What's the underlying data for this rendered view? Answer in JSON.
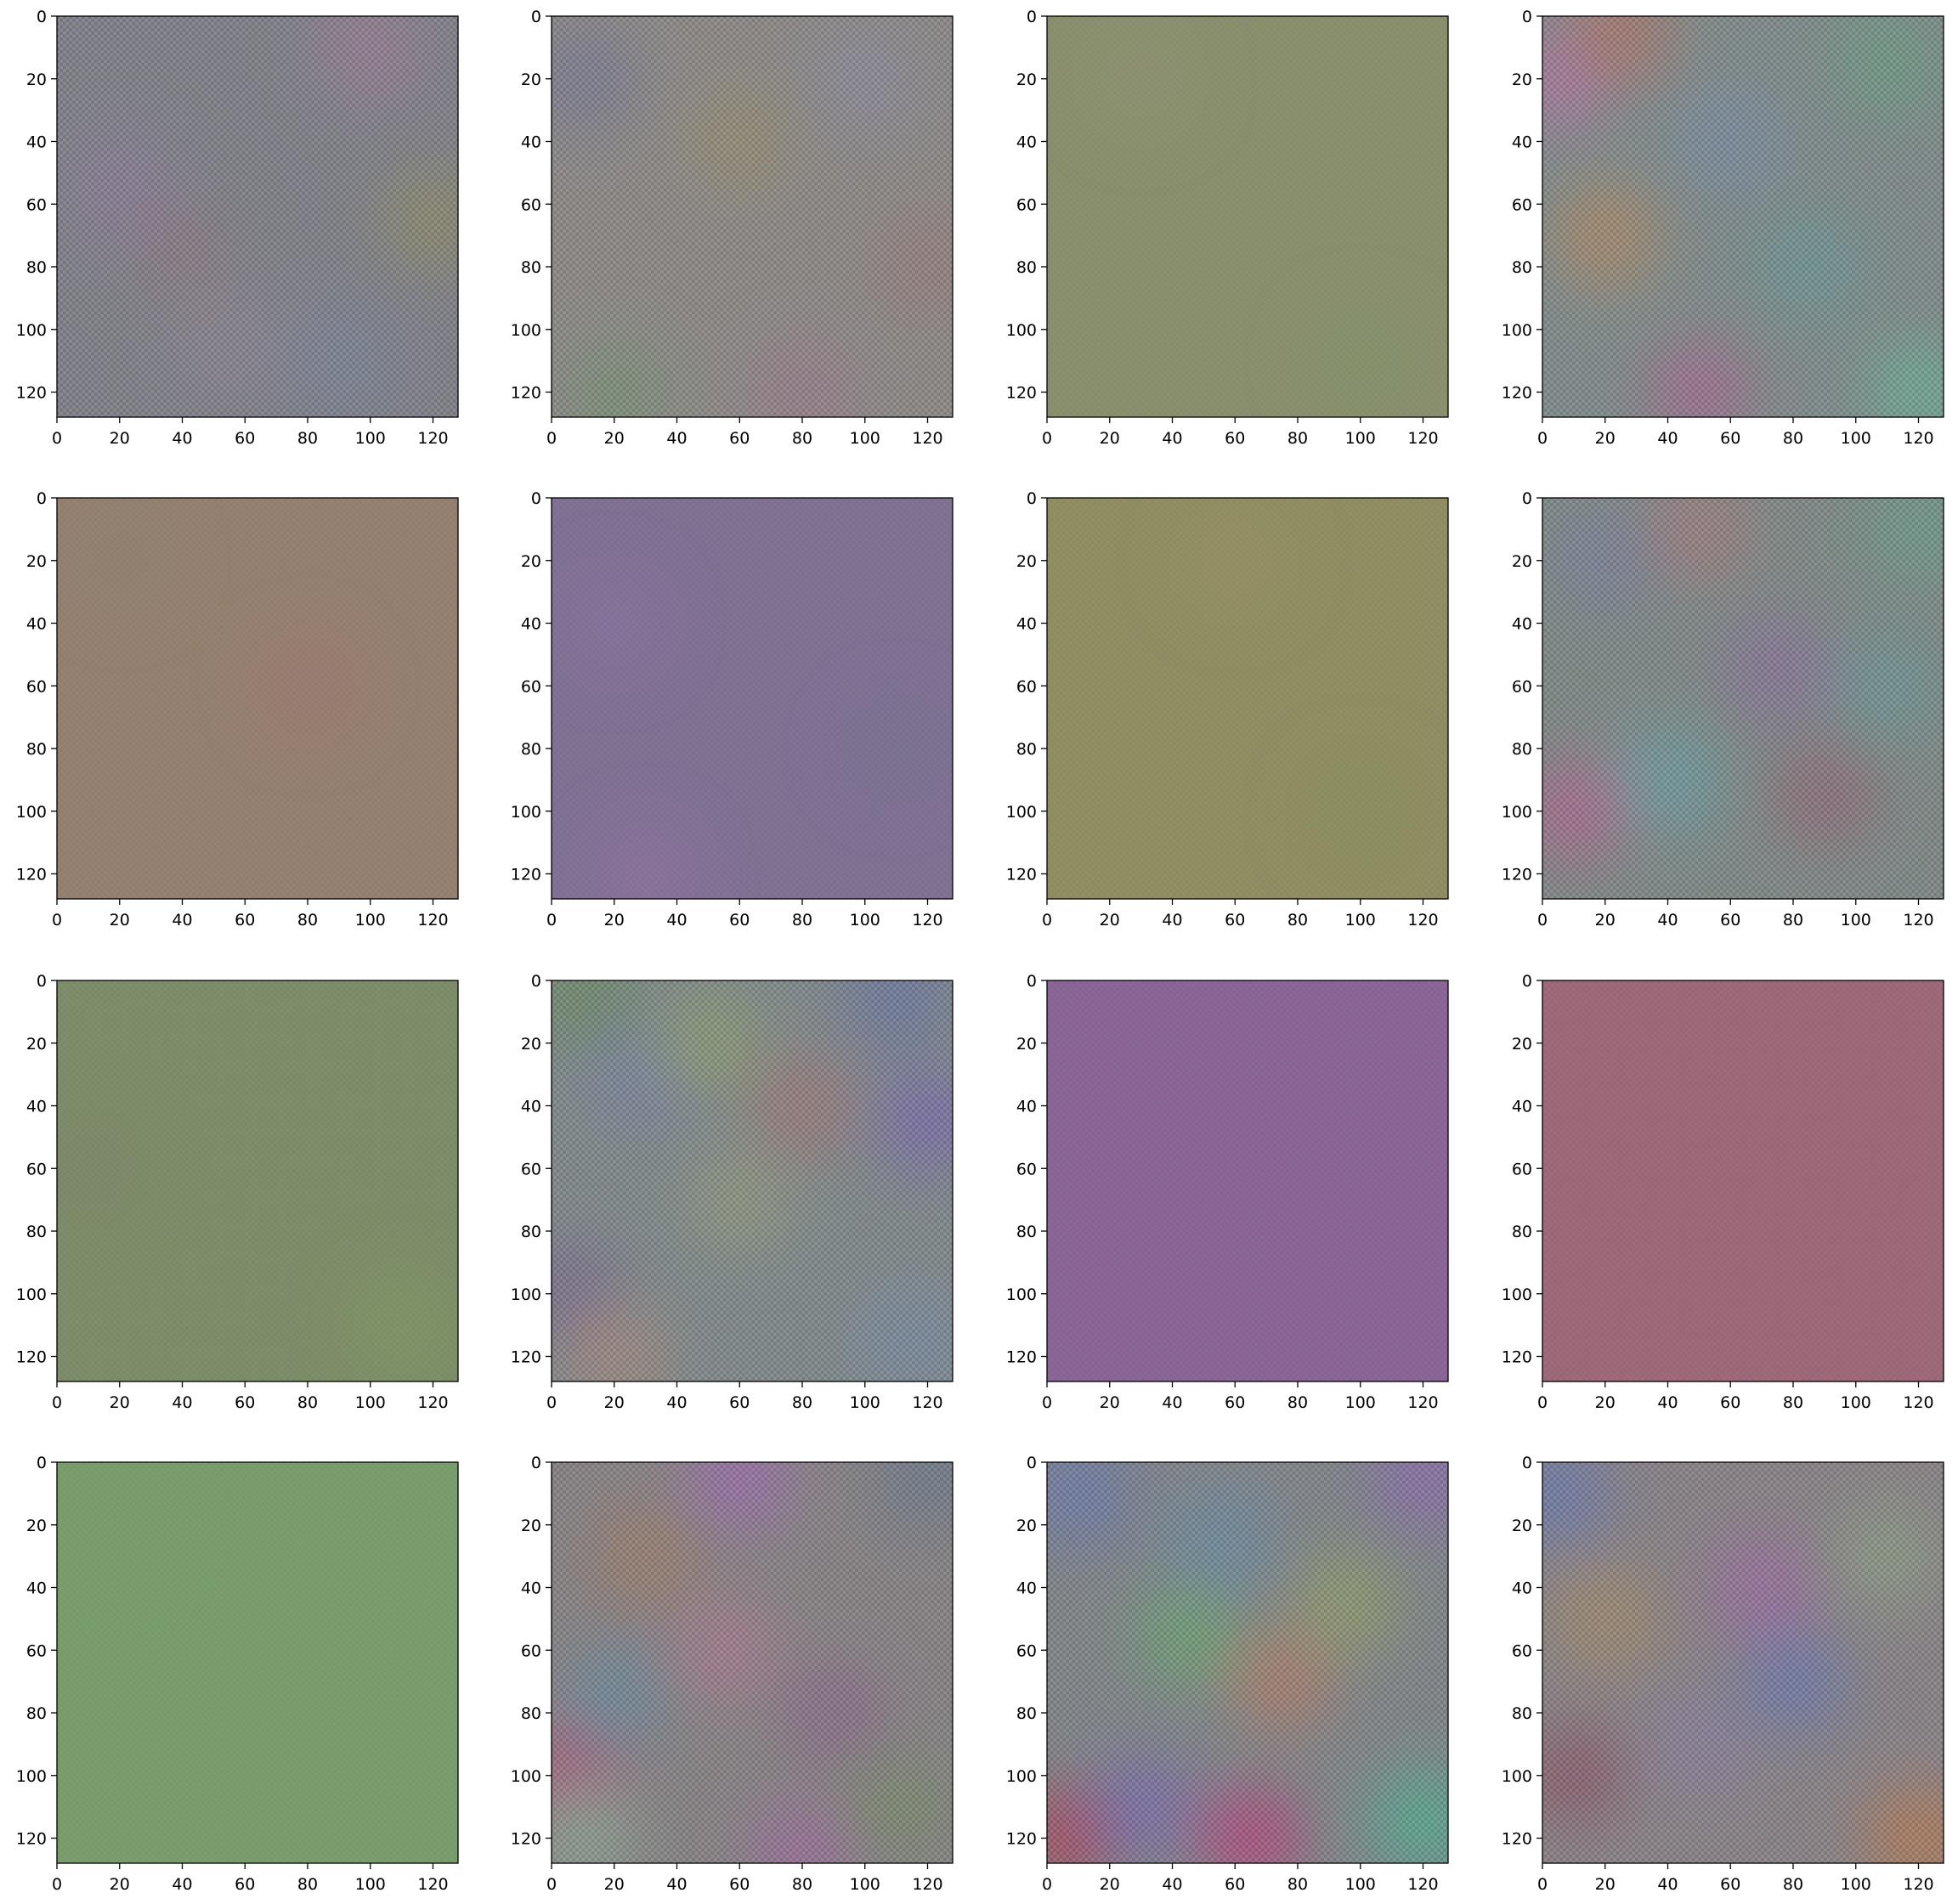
{
  "figure": {
    "rows": 4,
    "cols": 4
  },
  "chart_data": [
    {
      "type": "heatmap",
      "panel": 1,
      "xlim": [
        0,
        128
      ],
      "ylim": [
        128,
        0
      ],
      "xticks": [
        0,
        20,
        40,
        60,
        80,
        100,
        120
      ],
      "yticks": [
        0,
        20,
        40,
        60,
        80,
        100,
        120
      ],
      "base_color": "#7f8088",
      "texture": "noisy",
      "blobs": [
        {
          "x": 20,
          "y": 55,
          "color": "#8a7c96"
        },
        {
          "x": 100,
          "y": 10,
          "color": "#967d92"
        },
        {
          "x": 40,
          "y": 75,
          "color": "#8a7a84"
        },
        {
          "x": 120,
          "y": 65,
          "color": "#8c8a6e"
        },
        {
          "x": 90,
          "y": 110,
          "color": "#7a8496"
        },
        {
          "x": 55,
          "y": 105,
          "color": "#8a8490"
        }
      ]
    },
    {
      "type": "heatmap",
      "panel": 2,
      "xlim": [
        0,
        128
      ],
      "ylim": [
        128,
        0
      ],
      "xticks": [
        0,
        20,
        40,
        60,
        80,
        100,
        120
      ],
      "yticks": [
        0,
        20,
        40,
        60,
        80,
        100,
        120
      ],
      "base_color": "#8c8886",
      "texture": "noisy",
      "blobs": [
        {
          "x": 10,
          "y": 20,
          "color": "#7a7c92"
        },
        {
          "x": 60,
          "y": 40,
          "color": "#938c74"
        },
        {
          "x": 120,
          "y": 80,
          "color": "#94807e"
        },
        {
          "x": 20,
          "y": 120,
          "color": "#7a9078"
        },
        {
          "x": 100,
          "y": 20,
          "color": "#8c8a9a"
        },
        {
          "x": 80,
          "y": 120,
          "color": "#967e8a"
        }
      ]
    },
    {
      "type": "heatmap",
      "panel": 3,
      "xlim": [
        0,
        128
      ],
      "ylim": [
        128,
        0
      ],
      "xticks": [
        0,
        20,
        40,
        60,
        80,
        100,
        120
      ],
      "yticks": [
        0,
        20,
        40,
        60,
        80,
        100,
        120
      ],
      "base_color": "#878c6a",
      "texture": "smooth",
      "blobs": [
        {
          "x": 30,
          "y": 20,
          "color": "#8b8f70"
        },
        {
          "x": 100,
          "y": 110,
          "color": "#83906a"
        }
      ]
    },
    {
      "type": "heatmap",
      "panel": 4,
      "xlim": [
        0,
        128
      ],
      "ylim": [
        128,
        0
      ],
      "xticks": [
        0,
        20,
        40,
        60,
        80,
        100,
        120
      ],
      "yticks": [
        0,
        20,
        40,
        60,
        80,
        100,
        120
      ],
      "base_color": "#7f8a8a",
      "texture": "noisy",
      "blobs": [
        {
          "x": 5,
          "y": 20,
          "color": "#a878a0"
        },
        {
          "x": 20,
          "y": 70,
          "color": "#a8886a"
        },
        {
          "x": 110,
          "y": 15,
          "color": "#6e9a84"
        },
        {
          "x": 50,
          "y": 120,
          "color": "#a06e8e"
        },
        {
          "x": 120,
          "y": 120,
          "color": "#6ea894"
        },
        {
          "x": 60,
          "y": 40,
          "color": "#7a8c9e"
        },
        {
          "x": 85,
          "y": 80,
          "color": "#6e9494"
        },
        {
          "x": 25,
          "y": 5,
          "color": "#a8786e"
        }
      ]
    },
    {
      "type": "heatmap",
      "panel": 5,
      "xlim": [
        0,
        128
      ],
      "ylim": [
        128,
        0
      ],
      "xticks": [
        0,
        20,
        40,
        60,
        80,
        100,
        120
      ],
      "yticks": [
        0,
        20,
        40,
        60,
        80,
        100,
        120
      ],
      "base_color": "#927d6d",
      "texture": "smooth",
      "blobs": [
        {
          "x": 80,
          "y": 60,
          "color": "#98786e"
        },
        {
          "x": 20,
          "y": 20,
          "color": "#8e7e6e"
        }
      ]
    },
    {
      "type": "heatmap",
      "panel": 6,
      "xlim": [
        0,
        128
      ],
      "ylim": [
        128,
        0
      ],
      "xticks": [
        0,
        20,
        40,
        60,
        80,
        100,
        120
      ],
      "yticks": [
        0,
        20,
        40,
        60,
        80,
        100,
        120
      ],
      "base_color": "#7d6e90",
      "texture": "smooth",
      "blobs": [
        {
          "x": 20,
          "y": 40,
          "color": "#84709a"
        },
        {
          "x": 110,
          "y": 80,
          "color": "#786e8e"
        },
        {
          "x": 30,
          "y": 120,
          "color": "#88709a"
        }
      ]
    },
    {
      "type": "heatmap",
      "panel": 7,
      "xlim": [
        0,
        128
      ],
      "ylim": [
        128,
        0
      ],
      "xticks": [
        0,
        20,
        40,
        60,
        80,
        100,
        120
      ],
      "yticks": [
        0,
        20,
        40,
        60,
        80,
        100,
        120
      ],
      "base_color": "#8d8b5e",
      "texture": "smooth",
      "blobs": [
        {
          "x": 60,
          "y": 20,
          "color": "#928e62"
        },
        {
          "x": 100,
          "y": 100,
          "color": "#8a8c5e"
        }
      ]
    },
    {
      "type": "heatmap",
      "panel": 8,
      "xlim": [
        0,
        128
      ],
      "ylim": [
        128,
        0
      ],
      "xticks": [
        0,
        20,
        40,
        60,
        80,
        100,
        120
      ],
      "yticks": [
        0,
        20,
        40,
        60,
        80,
        100,
        120
      ],
      "base_color": "#7e8886",
      "texture": "noisy",
      "blobs": [
        {
          "x": 10,
          "y": 100,
          "color": "#a86a8e"
        },
        {
          "x": 90,
          "y": 95,
          "color": "#8e6e7a"
        },
        {
          "x": 120,
          "y": 10,
          "color": "#6e9a8a"
        },
        {
          "x": 40,
          "y": 90,
          "color": "#6e9aa0"
        },
        {
          "x": 75,
          "y": 55,
          "color": "#8a7498"
        },
        {
          "x": 110,
          "y": 60,
          "color": "#6e9494"
        },
        {
          "x": 20,
          "y": 20,
          "color": "#7a8298"
        },
        {
          "x": 50,
          "y": 10,
          "color": "#9c7e80"
        }
      ]
    },
    {
      "type": "heatmap",
      "panel": 9,
      "xlim": [
        0,
        128
      ],
      "ylim": [
        128,
        0
      ],
      "xticks": [
        0,
        20,
        40,
        60,
        80,
        100,
        120
      ],
      "yticks": [
        0,
        20,
        40,
        60,
        80,
        100,
        120
      ],
      "base_color": "#7a8a66",
      "texture": "smooth",
      "blobs": [
        {
          "x": 110,
          "y": 110,
          "color": "#7e9264"
        },
        {
          "x": 10,
          "y": 60,
          "color": "#7a8466"
        }
      ]
    },
    {
      "type": "heatmap",
      "panel": 10,
      "xlim": [
        0,
        128
      ],
      "ylim": [
        128,
        0
      ],
      "xticks": [
        0,
        20,
        40,
        60,
        80,
        100,
        120
      ],
      "yticks": [
        0,
        20,
        40,
        60,
        80,
        100,
        120
      ],
      "base_color": "#7f888a",
      "texture": "noisy",
      "blobs": [
        {
          "x": 10,
          "y": 5,
          "color": "#6e8a6a"
        },
        {
          "x": 110,
          "y": 5,
          "color": "#6e78a0"
        },
        {
          "x": 5,
          "y": 100,
          "color": "#7a6e8e"
        },
        {
          "x": 120,
          "y": 45,
          "color": "#7a6ea8"
        },
        {
          "x": 30,
          "y": 30,
          "color": "#7a82a0"
        },
        {
          "x": 60,
          "y": 70,
          "color": "#8e9680"
        },
        {
          "x": 20,
          "y": 120,
          "color": "#a08880"
        },
        {
          "x": 80,
          "y": 40,
          "color": "#9a7a7a"
        },
        {
          "x": 115,
          "y": 115,
          "color": "#7a8aa0"
        },
        {
          "x": 50,
          "y": 20,
          "color": "#8a9a74"
        }
      ]
    },
    {
      "type": "heatmap",
      "panel": 11,
      "xlim": [
        0,
        128
      ],
      "ylim": [
        128,
        0
      ],
      "xticks": [
        0,
        20,
        40,
        60,
        80,
        100,
        120
      ],
      "yticks": [
        0,
        20,
        40,
        60,
        80,
        100,
        120
      ],
      "base_color": "#876294",
      "texture": "smooth",
      "blobs": []
    },
    {
      "type": "heatmap",
      "panel": 12,
      "xlim": [
        0,
        128
      ],
      "ylim": [
        128,
        0
      ],
      "xticks": [
        0,
        20,
        40,
        60,
        80,
        100,
        120
      ],
      "yticks": [
        0,
        20,
        40,
        60,
        80,
        100,
        120
      ],
      "base_color": "#9a6676",
      "texture": "smooth",
      "blobs": []
    },
    {
      "type": "heatmap",
      "panel": 13,
      "xlim": [
        0,
        128
      ],
      "ylim": [
        128,
        0
      ],
      "xticks": [
        0,
        20,
        40,
        60,
        80,
        100,
        120
      ],
      "yticks": [
        0,
        20,
        40,
        60,
        80,
        100,
        120
      ],
      "base_color": "#769a6a",
      "texture": "smooth",
      "blobs": [
        {
          "x": 20,
          "y": 20,
          "color": "#789a6a"
        }
      ]
    },
    {
      "type": "heatmap",
      "panel": 14,
      "xlim": [
        0,
        128
      ],
      "ylim": [
        128,
        0
      ],
      "xticks": [
        0,
        20,
        40,
        60,
        80,
        100,
        120
      ],
      "yticks": [
        0,
        20,
        40,
        60,
        80,
        100,
        120
      ],
      "base_color": "#868284",
      "texture": "noisy",
      "blobs": [
        {
          "x": 5,
          "y": 100,
          "color": "#a85a7e"
        },
        {
          "x": 60,
          "y": 5,
          "color": "#9a6ea8"
        },
        {
          "x": 90,
          "y": 80,
          "color": "#8a6e8a"
        },
        {
          "x": 30,
          "y": 30,
          "color": "#9a7e6e"
        },
        {
          "x": 120,
          "y": 5,
          "color": "#6e7a8a"
        },
        {
          "x": 10,
          "y": 120,
          "color": "#8aa090"
        },
        {
          "x": 110,
          "y": 110,
          "color": "#7a8a6e"
        },
        {
          "x": 55,
          "y": 60,
          "color": "#a47a8e"
        },
        {
          "x": 20,
          "y": 75,
          "color": "#6e8a9a"
        },
        {
          "x": 80,
          "y": 125,
          "color": "#9a6e9a"
        }
      ]
    },
    {
      "type": "heatmap",
      "panel": 15,
      "xlim": [
        0,
        128
      ],
      "ylim": [
        128,
        0
      ],
      "xticks": [
        0,
        20,
        40,
        60,
        80,
        100,
        120
      ],
      "yticks": [
        0,
        20,
        40,
        60,
        80,
        100,
        120
      ],
      "base_color": "#7f8488",
      "texture": "noisy",
      "blobs": [
        {
          "x": 5,
          "y": 120,
          "color": "#a84e5e"
        },
        {
          "x": 65,
          "y": 120,
          "color": "#b04e7e"
        },
        {
          "x": 120,
          "y": 115,
          "color": "#58a890"
        },
        {
          "x": 45,
          "y": 55,
          "color": "#6ea074"
        },
        {
          "x": 75,
          "y": 70,
          "color": "#a87e6e"
        },
        {
          "x": 120,
          "y": 5,
          "color": "#8a6ea8"
        },
        {
          "x": 10,
          "y": 10,
          "color": "#6e7aa8"
        },
        {
          "x": 95,
          "y": 45,
          "color": "#8e9a6e"
        },
        {
          "x": 30,
          "y": 110,
          "color": "#7a6ea8"
        },
        {
          "x": 55,
          "y": 25,
          "color": "#6e8aa0"
        }
      ]
    },
    {
      "type": "heatmap",
      "panel": 16,
      "xlim": [
        0,
        128
      ],
      "ylim": [
        128,
        0
      ],
      "xticks": [
        0,
        20,
        40,
        60,
        80,
        100,
        120
      ],
      "yticks": [
        0,
        20,
        40,
        60,
        80,
        100,
        120
      ],
      "base_color": "#888286",
      "texture": "noisy",
      "blobs": [
        {
          "x": 5,
          "y": 10,
          "color": "#6e7aa8"
        },
        {
          "x": 80,
          "y": 70,
          "color": "#6e7aa8"
        },
        {
          "x": 70,
          "y": 40,
          "color": "#9a6ea0"
        },
        {
          "x": 10,
          "y": 100,
          "color": "#8a5e6e"
        },
        {
          "x": 120,
          "y": 120,
          "color": "#b07a5a"
        },
        {
          "x": 20,
          "y": 50,
          "color": "#9e8a6e"
        },
        {
          "x": 110,
          "y": 30,
          "color": "#8a9a84"
        },
        {
          "x": 50,
          "y": 90,
          "color": "#8a7e9a"
        }
      ]
    }
  ]
}
